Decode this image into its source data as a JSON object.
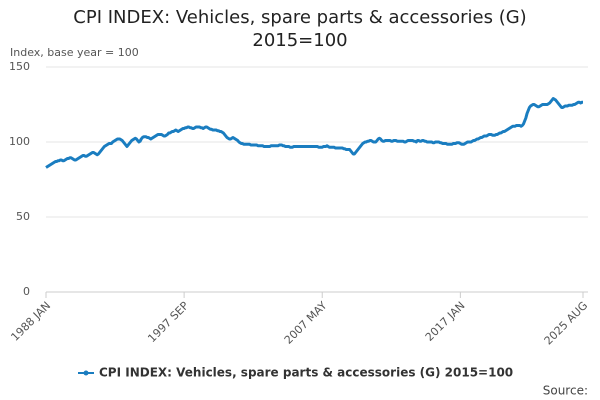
{
  "chart_data": {
    "type": "line",
    "title": "CPI INDEX: Vehicles, spare parts & accessories (G) 2015=100",
    "y_label": "Index, base year = 100",
    "source": "Source:",
    "categories": [
      "1988 JAN",
      null,
      null,
      null,
      null,
      null,
      null,
      null,
      null,
      null,
      null,
      null,
      null,
      null,
      null,
      null,
      null,
      null,
      null,
      null,
      null,
      null,
      null,
      null,
      null,
      null,
      null,
      null,
      null,
      null,
      null,
      null,
      null,
      null,
      null,
      null,
      null,
      null,
      null,
      null,
      null,
      null,
      null,
      null,
      null,
      null,
      null,
      null,
      null,
      null,
      null,
      null,
      null,
      null,
      null,
      null,
      null,
      null,
      null,
      null,
      null,
      null,
      null,
      null,
      null,
      null,
      null,
      null,
      null,
      null,
      null,
      null,
      null,
      null,
      null,
      null,
      null,
      null,
      null,
      null,
      null,
      null,
      null,
      null,
      null,
      null,
      null,
      null,
      null,
      null,
      null,
      null,
      null,
      null,
      null,
      null,
      null,
      null,
      null,
      null,
      null,
      null,
      null,
      null,
      null,
      null,
      null,
      null,
      null,
      null,
      null,
      null,
      null,
      null,
      null,
      null,
      "1997 SEP",
      null,
      null,
      null,
      null,
      null,
      null,
      null,
      null,
      null,
      null,
      null,
      null,
      null,
      null,
      null,
      null,
      null,
      null,
      null,
      null,
      null,
      null,
      null,
      null,
      null,
      null,
      null,
      null,
      null,
      null,
      null,
      null,
      null,
      null,
      null,
      null,
      null,
      null,
      null,
      null,
      null,
      null,
      null,
      null,
      null,
      null,
      null,
      null,
      null,
      null,
      null,
      null,
      null,
      null,
      null,
      null,
      null,
      null,
      null,
      null,
      null,
      null,
      null,
      null,
      null,
      null,
      null,
      null,
      null,
      null,
      null,
      null,
      null,
      null,
      null,
      null,
      null,
      null,
      null,
      null,
      null,
      null,
      null,
      null,
      null,
      null,
      null,
      null,
      null,
      null,
      null,
      null,
      null,
      null,
      null,
      null,
      null,
      null,
      null,
      null,
      null,
      null,
      null,
      null,
      null,
      null,
      null,
      null,
      null,
      null,
      null,
      null,
      null,
      null,
      null,
      "2007 MAY",
      null,
      null,
      null,
      null,
      null,
      null,
      null,
      null,
      null,
      null,
      null,
      null,
      null,
      null,
      null,
      null,
      null,
      null,
      null,
      null,
      null,
      null,
      null,
      null,
      null,
      null,
      null,
      null,
      null,
      null,
      null,
      null,
      null,
      null,
      null,
      null,
      null,
      null,
      null,
      null,
      null,
      null,
      null,
      null,
      null,
      null,
      null,
      null,
      null,
      null,
      null,
      null,
      null,
      null,
      null,
      null,
      null,
      null,
      null,
      null,
      null,
      null,
      null,
      null,
      null,
      null,
      null,
      null,
      null,
      null,
      null,
      null,
      null,
      null,
      null,
      null,
      null,
      null,
      null,
      null,
      null,
      null,
      null,
      null,
      null,
      null,
      null,
      null,
      null,
      null,
      null,
      null,
      null,
      null,
      null,
      null,
      null,
      null,
      null,
      null,
      null,
      null,
      null,
      null,
      null,
      null,
      null,
      null,
      null,
      null,
      null,
      null,
      null,
      null,
      null,
      "2017 JAN",
      null,
      null,
      null,
      null,
      null,
      null,
      null,
      null,
      null,
      null,
      null,
      null,
      null,
      null,
      null,
      null,
      null,
      null,
      null,
      null,
      null,
      null,
      null,
      null,
      null,
      null,
      null,
      null,
      null,
      null,
      null,
      null,
      null,
      null,
      null,
      null,
      null,
      null,
      null,
      null,
      null,
      null,
      null,
      null,
      null,
      null,
      null,
      null,
      null,
      null,
      null,
      null,
      null,
      null,
      null,
      null,
      null,
      null,
      null,
      null,
      null,
      null,
      null,
      null,
      null,
      null,
      null,
      null,
      null,
      null,
      null,
      null,
      null,
      null,
      null,
      null,
      null,
      null,
      null,
      null,
      null,
      null,
      null,
      null,
      null,
      null,
      null,
      null,
      null,
      null,
      null,
      null,
      null,
      null,
      null,
      null,
      null,
      null,
      null,
      null,
      null,
      null,
      "2025 AUG"
    ],
    "series": [
      {
        "name": "CPI INDEX: Vehicles, spare parts & accessories (G) 2015=100",
        "color": "#1a7dc0",
        "values": [
          83,
          83.5,
          84,
          84.5,
          85,
          85.5,
          86,
          86.5,
          87,
          87,
          87.5,
          87.5,
          88,
          88,
          87.5,
          87.5,
          88,
          88.5,
          89,
          89,
          89.5,
          89.5,
          89,
          88.5,
          88,
          88,
          88.5,
          89,
          89.5,
          90,
          90.5,
          91,
          91,
          90.5,
          90.5,
          91,
          91.5,
          92,
          92.5,
          93,
          93,
          92.5,
          92,
          91.5,
          92,
          93,
          94,
          95,
          96,
          97,
          97.5,
          98,
          98.5,
          99,
          99,
          99,
          100,
          100.5,
          101,
          101.5,
          102,
          102,
          102,
          101.5,
          101,
          100,
          99,
          98,
          97,
          98,
          99,
          100,
          101,
          101.5,
          102,
          102.5,
          102,
          101,
          100,
          100.5,
          102,
          103,
          103.5,
          103.5,
          103.5,
          103,
          103,
          102.5,
          102,
          102.5,
          103,
          103.5,
          104,
          104.5,
          105,
          105,
          105,
          105,
          104.5,
          104,
          104,
          104.5,
          105,
          106,
          106,
          106.5,
          107,
          107,
          107.5,
          108,
          107.5,
          107,
          107.5,
          108,
          108.5,
          109,
          109,
          109.5,
          109.5,
          110,
          110,
          109.5,
          109.5,
          109,
          109,
          109.5,
          110,
          110,
          110,
          110,
          109.5,
          109.5,
          109,
          109.5,
          110,
          110,
          109.5,
          109,
          108.5,
          108.5,
          108,
          108,
          108,
          108,
          107.5,
          107.5,
          107,
          107,
          106.5,
          106,
          105,
          104,
          103,
          102.5,
          102,
          102,
          102.5,
          103,
          102.5,
          102,
          101.5,
          101,
          100,
          99.5,
          99,
          99,
          98.5,
          98.5,
          98.5,
          98.5,
          98.5,
          98.5,
          98,
          98,
          98,
          98,
          98,
          98,
          97.5,
          97.5,
          97.5,
          97.5,
          97.5,
          97,
          97,
          97,
          97,
          97,
          97,
          97.5,
          97.5,
          97.5,
          97.5,
          97.5,
          97.5,
          97.5,
          98,
          98,
          98,
          97.5,
          97.5,
          97,
          97,
          97,
          97,
          96.5,
          96.5,
          96.5,
          97,
          97,
          97,
          97,
          97,
          97,
          97,
          97,
          97,
          97,
          97,
          97,
          97,
          97,
          97,
          97,
          97,
          97,
          97,
          97,
          97,
          96.5,
          96.5,
          96.5,
          96.5,
          97,
          97,
          97,
          97.5,
          97,
          96.5,
          96.5,
          96.5,
          96.5,
          96.5,
          96,
          96,
          96,
          96,
          96,
          96,
          96,
          95.5,
          95.5,
          95,
          95,
          95,
          95,
          94,
          93,
          92,
          92,
          93,
          94,
          95,
          96,
          97,
          98,
          99,
          99.5,
          100,
          100,
          100.5,
          100.5,
          101,
          101,
          100.5,
          100,
          100,
          100,
          101,
          102,
          102.5,
          102,
          101,
          100.5,
          100.5,
          101,
          101,
          101,
          101,
          101,
          100.5,
          100.5,
          101,
          101,
          101,
          100.5,
          100.5,
          100.5,
          100.5,
          100.5,
          100.5,
          100,
          100,
          100.5,
          101,
          101,
          101,
          101,
          101,
          100.5,
          100.5,
          100,
          101,
          101,
          100.5,
          100.5,
          101,
          101,
          100.5,
          100.5,
          100,
          100,
          100,
          100,
          100,
          99.5,
          99.5,
          100,
          100,
          100,
          100,
          99.5,
          99.5,
          99,
          99,
          99,
          99,
          98.5,
          98.5,
          98.5,
          98.5,
          98.5,
          99,
          99,
          99,
          99.5,
          99.5,
          99.5,
          99,
          98.5,
          98.5,
          98.5,
          99,
          99.5,
          100,
          100,
          100,
          100,
          100.5,
          101,
          101,
          101.5,
          102,
          102,
          102.5,
          103,
          103,
          103.5,
          104,
          104,
          104,
          104.5,
          105,
          105,
          105,
          104.5,
          104.5,
          104.5,
          105,
          105,
          105.5,
          106,
          106,
          106.5,
          107,
          107,
          107.5,
          108,
          108.5,
          109,
          109.5,
          110,
          110.5,
          110.5,
          110.5,
          111,
          111,
          111,
          111,
          110.5,
          111,
          112,
          114,
          116,
          119,
          121,
          123,
          124,
          124.5,
          125,
          125,
          124.5,
          124,
          123.5,
          123.5,
          124,
          124.5,
          125,
          125,
          125,
          125,
          125,
          125.5,
          126,
          127,
          128,
          129,
          128.5,
          128,
          127,
          126,
          125,
          124,
          123,
          123,
          123.5,
          124,
          124,
          124,
          124.5,
          124.5,
          124.5,
          124.5,
          125,
          125,
          125.5,
          126,
          126.5,
          126.5,
          126,
          126.5,
          126.5
        ]
      }
    ],
    "ylim": [
      0,
      150
    ],
    "yticks": [
      0,
      50,
      100,
      150
    ],
    "grid": true,
    "legend": "bottom"
  }
}
